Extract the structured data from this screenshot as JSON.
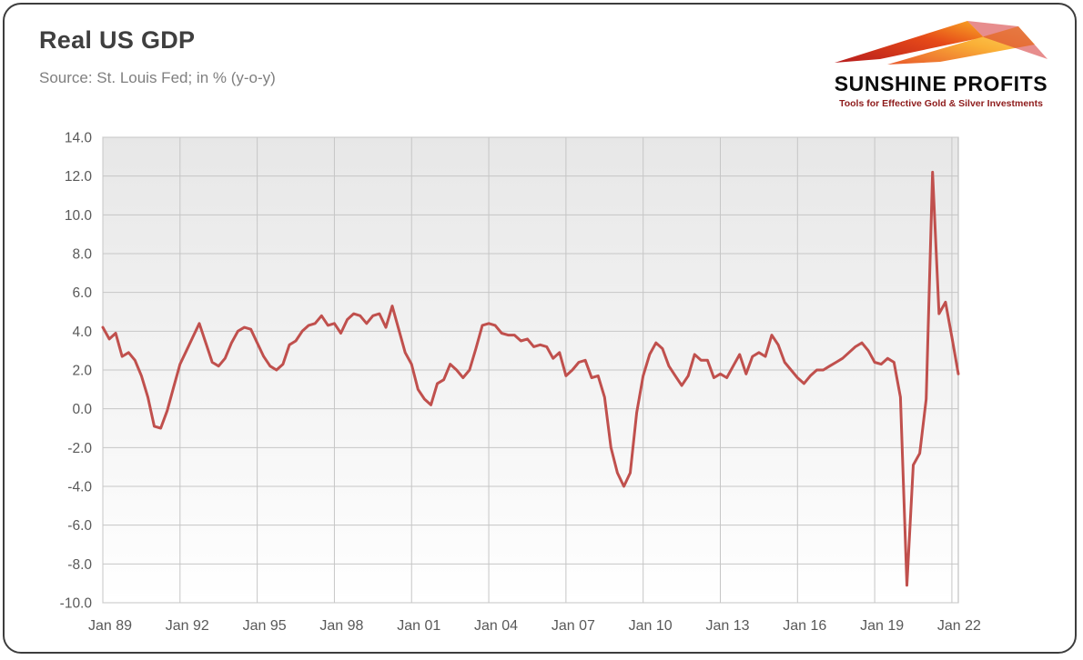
{
  "header": {
    "title": "Real US GDP",
    "subtitle": "Source: St. Louis Fed; in % (y-o-y)"
  },
  "logo": {
    "icon": "sunshine-arrow-icon",
    "name": "SUNSHINE PROFITS",
    "tagline": "Tools for Effective Gold & Silver Investments",
    "icon_colors": [
      "#b71c1c",
      "#e64a19",
      "#f9a825",
      "#ffd54f"
    ]
  },
  "chart_data": {
    "type": "line",
    "title": "Real US GDP",
    "subtitle": "Source: St. Louis Fed; in % (y-o-y)",
    "series_name": "Real US GDP growth, % y-o-y, quarterly",
    "line_color": "#c0504d",
    "line_width": 3,
    "grid": true,
    "legend": "none",
    "plot_bg_top": "#e7e7e7",
    "plot_bg_bottom": "#ffffff",
    "grid_color": "#c6c6c6",
    "plot_border_color": "#b5b5b5",
    "tick_label_color": "#595959",
    "ylim": [
      -10,
      14
    ],
    "ytick_step": 2,
    "ytick_decimals": 1,
    "x_start": "1989Q1",
    "x_freq": "quarterly",
    "xtick_every_n_points": 12,
    "xtick_labels": [
      "Jan 89",
      "Jan 92",
      "Jan 95",
      "Jan 98",
      "Jan 01",
      "Jan 04",
      "Jan 07",
      "Jan 10",
      "Jan 13",
      "Jan 16",
      "Jan 19",
      "Jan 22"
    ],
    "values": [
      4.2,
      3.6,
      3.9,
      2.7,
      2.9,
      2.5,
      1.7,
      0.6,
      -0.9,
      -1.0,
      -0.1,
      1.1,
      2.3,
      3.0,
      3.7,
      4.4,
      3.4,
      2.4,
      2.2,
      2.6,
      3.4,
      4.0,
      4.2,
      4.1,
      3.4,
      2.7,
      2.2,
      2.0,
      2.3,
      3.3,
      3.5,
      4.0,
      4.3,
      4.4,
      4.8,
      4.3,
      4.4,
      3.9,
      4.6,
      4.9,
      4.8,
      4.4,
      4.8,
      4.9,
      4.2,
      5.3,
      4.1,
      2.9,
      2.3,
      1.0,
      0.5,
      0.2,
      1.3,
      1.5,
      2.3,
      2.0,
      1.6,
      2.0,
      3.1,
      4.3,
      4.4,
      4.3,
      3.9,
      3.8,
      3.8,
      3.5,
      3.6,
      3.2,
      3.3,
      3.2,
      2.6,
      2.9,
      1.7,
      2.0,
      2.4,
      2.5,
      1.6,
      1.7,
      0.6,
      -2.0,
      -3.3,
      -4.0,
      -3.3,
      -0.2,
      1.7,
      2.8,
      3.4,
      3.1,
      2.2,
      1.7,
      1.2,
      1.7,
      2.8,
      2.5,
      2.5,
      1.6,
      1.8,
      1.6,
      2.2,
      2.8,
      1.8,
      2.7,
      2.9,
      2.7,
      3.8,
      3.3,
      2.4,
      2.0,
      1.6,
      1.3,
      1.7,
      2.0,
      2.0,
      2.2,
      2.4,
      2.6,
      2.9,
      3.2,
      3.4,
      3.0,
      2.4,
      2.3,
      2.6,
      2.4,
      0.6,
      -9.1,
      -2.9,
      -2.3,
      0.5,
      12.2,
      4.9,
      5.5,
      3.7,
      1.8
    ]
  }
}
